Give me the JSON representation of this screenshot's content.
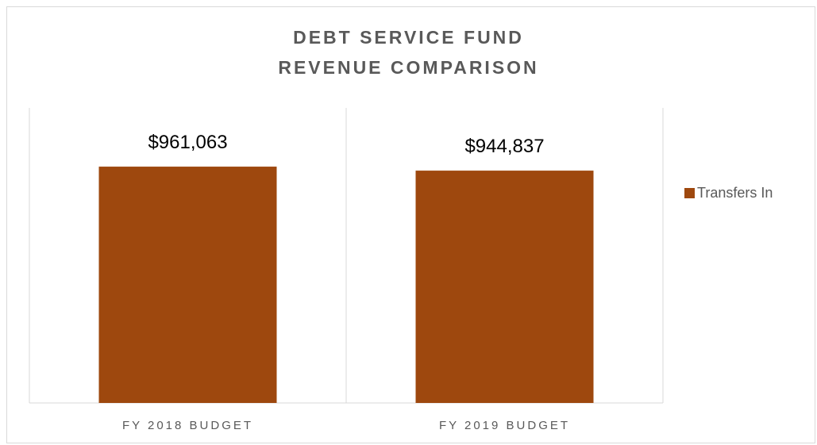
{
  "chart_data": {
    "type": "bar",
    "title_lines": [
      "DEBT SERVICE FUND",
      "REVENUE COMPARISON"
    ],
    "categories": [
      "FY 2018 BUDGET",
      "FY 2019 BUDGET"
    ],
    "series": [
      {
        "name": "Transfers In",
        "values": [
          961063,
          944837
        ],
        "data_labels": [
          "$961,063",
          "$944,837"
        ],
        "color": "#9e480e"
      }
    ],
    "ylim": [
      0,
      1200000
    ],
    "grid": false,
    "legend_position": "right",
    "xlabel": "",
    "ylabel": ""
  }
}
